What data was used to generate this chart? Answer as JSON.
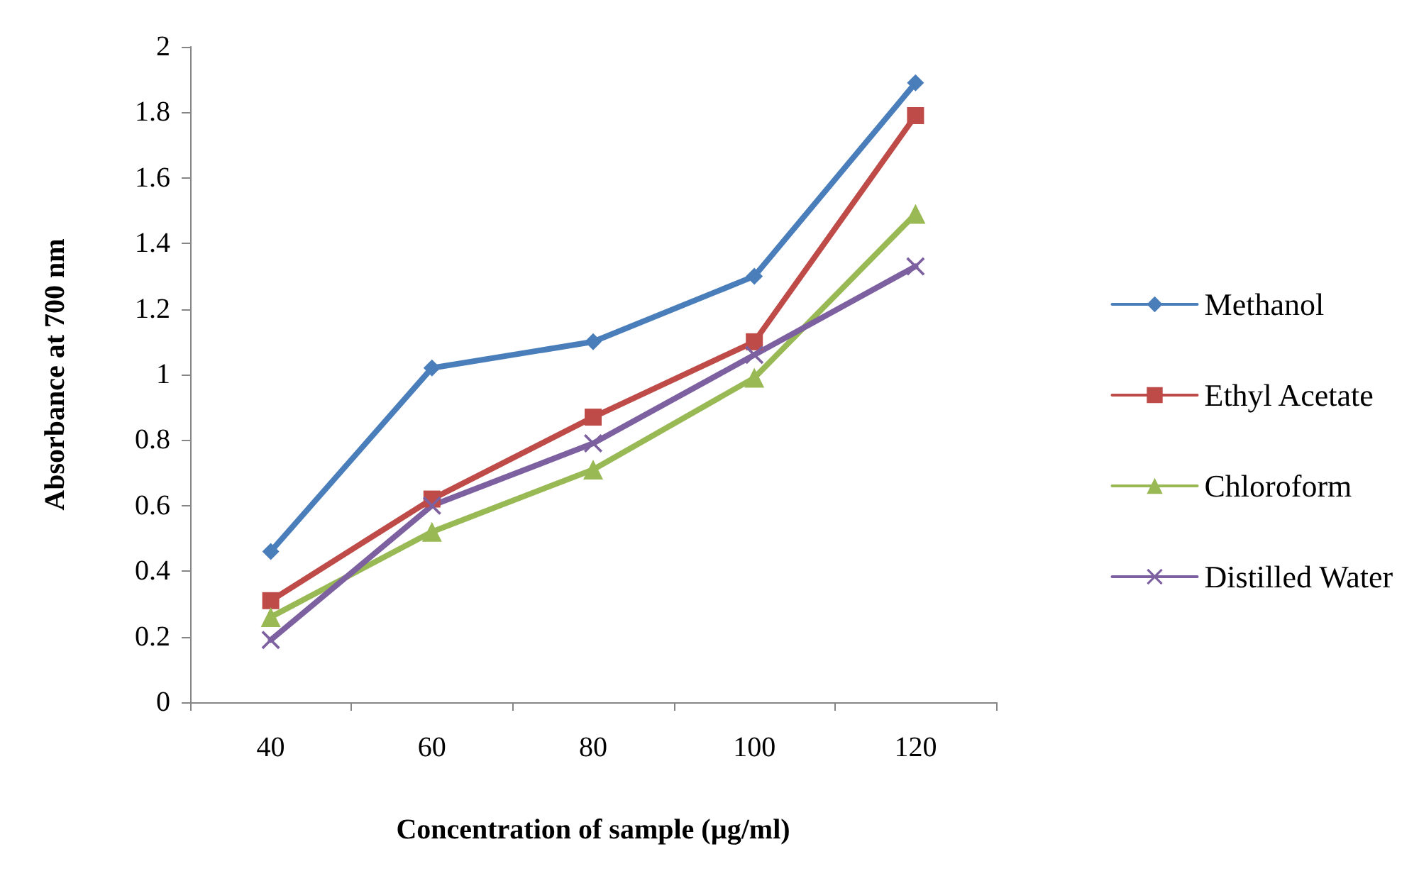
{
  "chart_data": {
    "type": "line",
    "xlabel": "Concentration of sample (µg/ml)",
    "ylabel": "Absorbance at 700 nm",
    "categories": [
      "40",
      "60",
      "80",
      "100",
      "120"
    ],
    "ylim": [
      0,
      2
    ],
    "yticks": [
      0,
      0.2,
      0.4,
      0.6,
      0.8,
      1,
      1.2,
      1.4,
      1.6,
      1.8,
      2
    ],
    "grid": false,
    "legend": "right",
    "line_style": "solid",
    "series": [
      {
        "name": "Methanol",
        "color": "#4a7ebb",
        "marker": "diamond",
        "values": [
          0.46,
          1.02,
          1.1,
          1.3,
          1.89
        ]
      },
      {
        "name": "Ethyl Acetate",
        "color": "#be4b48",
        "marker": "square",
        "values": [
          0.31,
          0.62,
          0.87,
          1.1,
          1.79
        ]
      },
      {
        "name": "Chloroform",
        "color": "#98b954",
        "marker": "triangle",
        "values": [
          0.26,
          0.52,
          0.71,
          0.99,
          1.49
        ]
      },
      {
        "name": "Distilled Water",
        "color": "#7d60a0",
        "marker": "cross",
        "values": [
          0.19,
          0.6,
          0.79,
          1.06,
          1.33
        ]
      }
    ]
  }
}
